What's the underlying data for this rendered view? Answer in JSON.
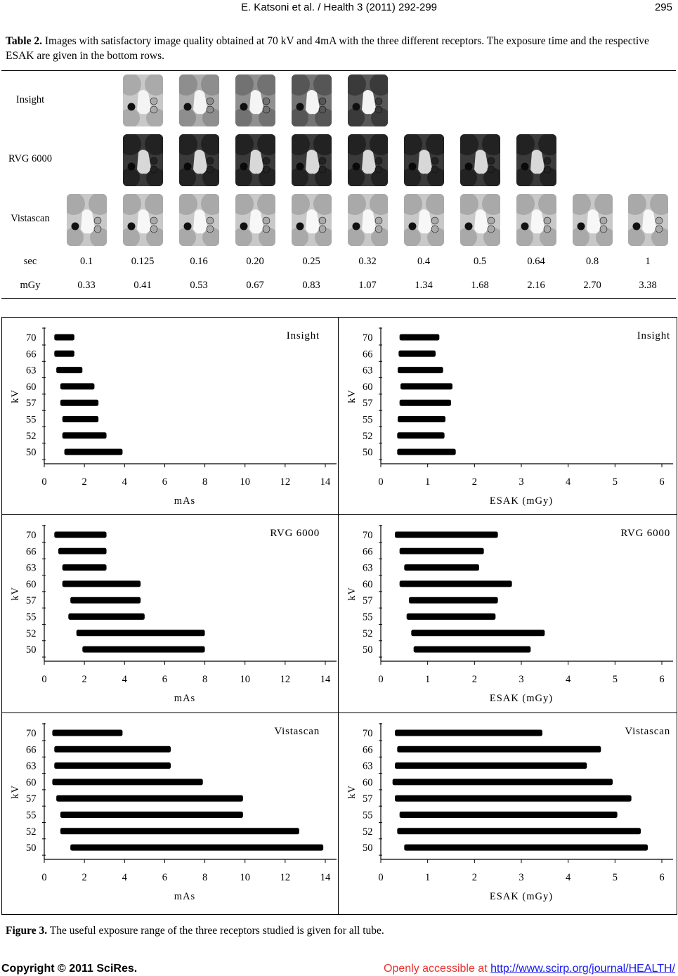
{
  "header": {
    "running_title": "E. Katsoni et al. / Health 3 (2011) 292-299",
    "page_number": "295"
  },
  "table": {
    "caption_label": "Table 2.",
    "caption_text": "Images with satisfactory image quality obtained at 70 kV and 4mA with the three different receptors. The exposure time and the respective ESAK are given in the bottom rows.",
    "rows": [
      {
        "label": "Insight",
        "image_count": 5,
        "tone": "light-to-dark"
      },
      {
        "label": "RVG 6000",
        "image_count": 8,
        "tone": "dark"
      },
      {
        "label": "Vistascan",
        "image_count": 11,
        "tone": "light"
      }
    ],
    "sec_label": "sec",
    "sec_values": [
      "0.1",
      "0.125",
      "0.16",
      "0.20",
      "0.25",
      "0.32",
      "0.4",
      "0.5",
      "0.64",
      "0.8",
      "1"
    ],
    "mgy_label": "mGy",
    "mgy_values": [
      "0.33",
      "0.41",
      "0.53",
      "0.67",
      "0.83",
      "1.07",
      "1.34",
      "1.68",
      "2.16",
      "2.70",
      "3.38"
    ]
  },
  "chart_data": [
    {
      "type": "bar",
      "orientation": "horizontal",
      "panel_label": "Insight",
      "xlabel": "mAs",
      "ylabel": "kV",
      "xlim": [
        0,
        14
      ],
      "xticks": [
        0,
        2,
        4,
        6,
        8,
        10,
        12,
        14
      ],
      "categories": [
        "70",
        "66",
        "63",
        "60",
        "57",
        "55",
        "52",
        "50"
      ],
      "ranges": [
        [
          0.5,
          1.5
        ],
        [
          0.5,
          1.5
        ],
        [
          0.6,
          1.9
        ],
        [
          0.8,
          2.5
        ],
        [
          0.8,
          2.7
        ],
        [
          0.9,
          2.7
        ],
        [
          0.9,
          3.1
        ],
        [
          1.0,
          3.9
        ]
      ]
    },
    {
      "type": "bar",
      "orientation": "horizontal",
      "panel_label": "Insight",
      "xlabel": "ESAK (mGy)",
      "ylabel": "kV",
      "xlim": [
        0,
        6
      ],
      "xticks": [
        0,
        1,
        2,
        3,
        4,
        5,
        6
      ],
      "categories": [
        "70",
        "66",
        "63",
        "60",
        "57",
        "55",
        "52",
        "50"
      ],
      "ranges": [
        [
          0.4,
          1.25
        ],
        [
          0.38,
          1.17
        ],
        [
          0.36,
          1.33
        ],
        [
          0.42,
          1.53
        ],
        [
          0.4,
          1.5
        ],
        [
          0.36,
          1.38
        ],
        [
          0.35,
          1.36
        ],
        [
          0.35,
          1.6
        ]
      ]
    },
    {
      "type": "bar",
      "orientation": "horizontal",
      "panel_label": "RVG 6000",
      "xlabel": "mAs",
      "ylabel": "kV",
      "xlim": [
        0,
        14
      ],
      "xticks": [
        0,
        2,
        4,
        6,
        8,
        10,
        12,
        14
      ],
      "categories": [
        "70",
        "66",
        "63",
        "60",
        "57",
        "55",
        "52",
        "50"
      ],
      "ranges": [
        [
          0.5,
          3.1
        ],
        [
          0.7,
          3.1
        ],
        [
          0.9,
          3.1
        ],
        [
          0.9,
          4.8
        ],
        [
          1.3,
          4.8
        ],
        [
          1.2,
          5.0
        ],
        [
          1.6,
          8.0
        ],
        [
          1.9,
          8.0
        ]
      ]
    },
    {
      "type": "bar",
      "orientation": "horizontal",
      "panel_label": "RVG 6000",
      "xlabel": "ESAK (mGy)",
      "ylabel": "kV",
      "xlim": [
        0,
        6
      ],
      "xticks": [
        0,
        1,
        2,
        3,
        4,
        5,
        6
      ],
      "categories": [
        "70",
        "66",
        "63",
        "60",
        "57",
        "55",
        "52",
        "50"
      ],
      "ranges": [
        [
          0.3,
          2.5
        ],
        [
          0.4,
          2.2
        ],
        [
          0.5,
          2.1
        ],
        [
          0.4,
          2.8
        ],
        [
          0.6,
          2.5
        ],
        [
          0.55,
          2.45
        ],
        [
          0.65,
          3.5
        ],
        [
          0.7,
          3.2
        ]
      ]
    },
    {
      "type": "bar",
      "orientation": "horizontal",
      "panel_label": "Vistascan",
      "xlabel": "mAs",
      "ylabel": "kV",
      "xlim": [
        0,
        14
      ],
      "xticks": [
        0,
        2,
        4,
        6,
        8,
        10,
        12,
        14
      ],
      "categories": [
        "70",
        "66",
        "63",
        "60",
        "57",
        "55",
        "52",
        "50"
      ],
      "ranges": [
        [
          0.4,
          3.9
        ],
        [
          0.5,
          6.3
        ],
        [
          0.5,
          6.3
        ],
        [
          0.4,
          7.9
        ],
        [
          0.6,
          9.9
        ],
        [
          0.8,
          9.9
        ],
        [
          0.8,
          12.7
        ],
        [
          1.3,
          13.9
        ]
      ]
    },
    {
      "type": "bar",
      "orientation": "horizontal",
      "panel_label": "Vistascan",
      "xlabel": "ESAK (mGy)",
      "ylabel": "kV",
      "xlim": [
        0,
        6
      ],
      "xticks": [
        0,
        1,
        2,
        3,
        4,
        5,
        6
      ],
      "categories": [
        "70",
        "66",
        "63",
        "60",
        "57",
        "55",
        "52",
        "50"
      ],
      "ranges": [
        [
          0.3,
          3.45
        ],
        [
          0.35,
          4.7
        ],
        [
          0.3,
          4.4
        ],
        [
          0.25,
          4.95
        ],
        [
          0.3,
          5.35
        ],
        [
          0.4,
          5.05
        ],
        [
          0.35,
          5.55
        ],
        [
          0.5,
          5.7
        ]
      ]
    }
  ],
  "figure": {
    "caption_label": "Figure 3.",
    "caption_text": "The useful exposure range of the three receptors studied is given for all tube."
  },
  "footer": {
    "copyright": "Copyright © 2011 SciRes.",
    "access_text": "Openly accessible at ",
    "link_text": "http://www.scirp.org/journal/HEALTH/"
  }
}
